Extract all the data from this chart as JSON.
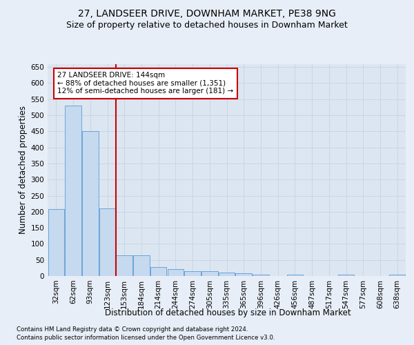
{
  "title1": "27, LANDSEER DRIVE, DOWNHAM MARKET, PE38 9NG",
  "title2": "Size of property relative to detached houses in Downham Market",
  "xlabel": "Distribution of detached houses by size in Downham Market",
  "ylabel": "Number of detached properties",
  "footnote1": "Contains HM Land Registry data © Crown copyright and database right 2024.",
  "footnote2": "Contains public sector information licensed under the Open Government Licence v3.0.",
  "categories": [
    "32sqm",
    "62sqm",
    "93sqm",
    "123sqm",
    "153sqm",
    "184sqm",
    "214sqm",
    "244sqm",
    "274sqm",
    "305sqm",
    "335sqm",
    "365sqm",
    "396sqm",
    "426sqm",
    "456sqm",
    "487sqm",
    "517sqm",
    "547sqm",
    "577sqm",
    "608sqm",
    "638sqm"
  ],
  "values": [
    208,
    530,
    450,
    210,
    65,
    65,
    27,
    22,
    15,
    15,
    10,
    8,
    5,
    0,
    4,
    0,
    0,
    4,
    0,
    0,
    4
  ],
  "bar_color": "#c5d9ef",
  "bar_edge_color": "#5b9bd5",
  "vline_x": 3.5,
  "annotation_title": "27 LANDSEER DRIVE: 144sqm",
  "annotation_line1": "← 88% of detached houses are smaller (1,351)",
  "annotation_line2": "12% of semi-detached houses are larger (181) →",
  "annotation_box_color": "white",
  "annotation_box_edge_color": "#cc0000",
  "vline_color": "#cc0000",
  "ylim": [
    0,
    660
  ],
  "yticks": [
    0,
    50,
    100,
    150,
    200,
    250,
    300,
    350,
    400,
    450,
    500,
    550,
    600,
    650
  ],
  "bg_color": "#e8eef7",
  "plot_bg_color": "#dce6f1",
  "grid_color": "#c8d4e8",
  "title1_fontsize": 10,
  "title2_fontsize": 9,
  "xlabel_fontsize": 8.5,
  "ylabel_fontsize": 8.5,
  "tick_fontsize": 7.5,
  "annot_fontsize": 7.5
}
